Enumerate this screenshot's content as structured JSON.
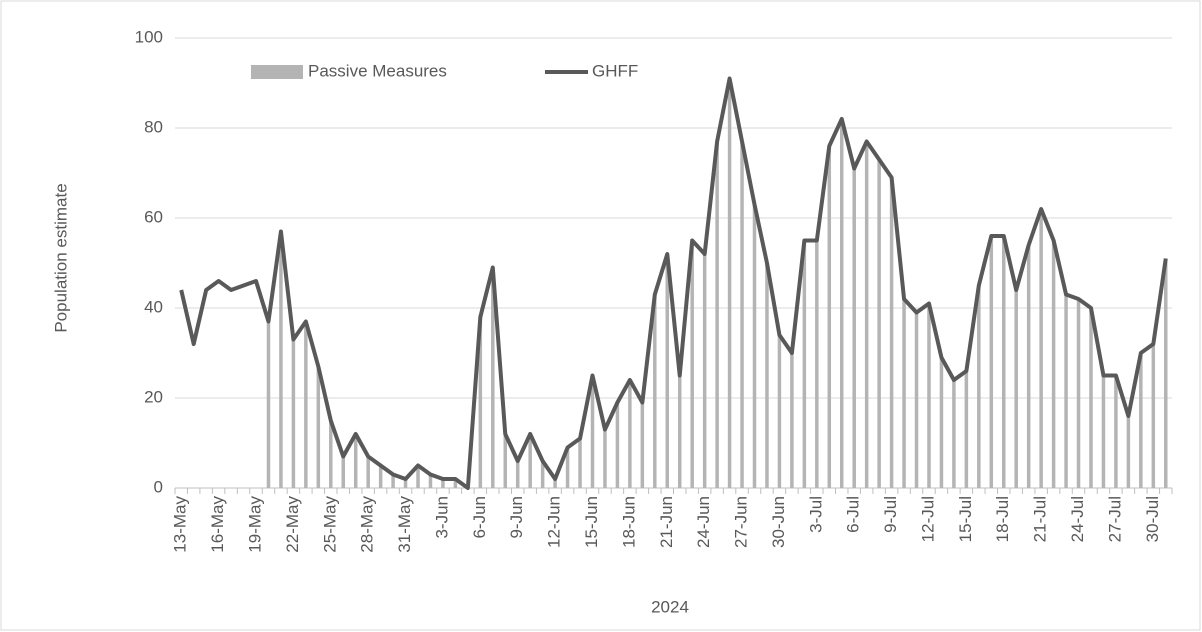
{
  "chart_data": {
    "type": "bar-line",
    "x_label": "2024",
    "y_label": "Population estimate",
    "categories": [
      "13-May",
      null,
      null,
      "16-May",
      null,
      null,
      "19-May",
      null,
      null,
      "22-May",
      null,
      null,
      "25-May",
      null,
      null,
      "28-May",
      null,
      null,
      "31-May",
      null,
      null,
      "3-Jun",
      null,
      null,
      "6-Jun",
      null,
      null,
      "9-Jun",
      null,
      null,
      "12-Jun",
      null,
      null,
      "15-Jun",
      null,
      null,
      "18-Jun",
      null,
      null,
      "21-Jun",
      null,
      null,
      "24-Jun",
      null,
      null,
      "27-Jun",
      null,
      null,
      "30-Jun",
      null,
      null,
      "3-Jul",
      null,
      null,
      "6-Jul",
      null,
      null,
      "9-Jul",
      null,
      null,
      "12-Jul",
      null,
      null,
      "15-Jul",
      null,
      null,
      "18-Jul",
      null,
      null,
      "21-Jul",
      null,
      null,
      "24-Jul",
      null,
      null,
      "27-Jul",
      null,
      null,
      "30-Jul",
      null
    ],
    "series": [
      {
        "name": "Passive Measures",
        "kind": "bar",
        "color": "#b4b4b4",
        "values": [
          null,
          null,
          null,
          null,
          null,
          null,
          null,
          37,
          57,
          33,
          37,
          27,
          15,
          7,
          12,
          7,
          5,
          3,
          2,
          5,
          3,
          2,
          2,
          0,
          38,
          49,
          12,
          6,
          12,
          6,
          2,
          9,
          11,
          25,
          13,
          19,
          24,
          19,
          43,
          52,
          25,
          55,
          52,
          77,
          91,
          77,
          63,
          50,
          34,
          30,
          55,
          55,
          76,
          82,
          71,
          77,
          73,
          69,
          42,
          39,
          41,
          29,
          24,
          26,
          45,
          56,
          56,
          44,
          54,
          62,
          55,
          43,
          42,
          40,
          25,
          25,
          16,
          30,
          32,
          51
        ]
      },
      {
        "name": "GHFF",
        "kind": "line",
        "color": "#595959",
        "values": [
          44,
          32,
          44,
          46,
          44,
          45,
          46,
          37,
          57,
          33,
          37,
          27,
          15,
          7,
          12,
          7,
          5,
          3,
          2,
          5,
          3,
          2,
          2,
          0,
          38,
          49,
          12,
          6,
          12,
          6,
          2,
          9,
          11,
          25,
          13,
          19,
          24,
          19,
          43,
          52,
          25,
          55,
          52,
          77,
          91,
          77,
          63,
          50,
          34,
          30,
          55,
          55,
          76,
          82,
          71,
          77,
          73,
          69,
          42,
          39,
          41,
          29,
          24,
          26,
          45,
          56,
          56,
          44,
          54,
          62,
          55,
          43,
          42,
          40,
          25,
          25,
          16,
          30,
          32,
          51
        ]
      }
    ],
    "ylim": [
      0,
      100
    ],
    "yticks": [
      0,
      20,
      40,
      60,
      80,
      100
    ],
    "grid": true
  }
}
